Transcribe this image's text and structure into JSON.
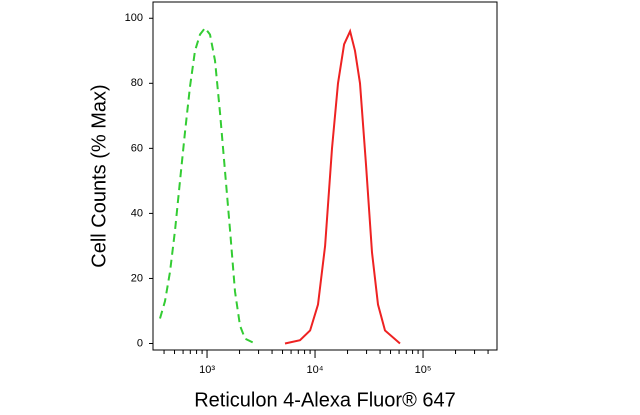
{
  "chart_data": {
    "type": "line",
    "xlabel": "Reticulon 4-Alexa Fluor® 647",
    "ylabel": "Cell Counts (% Max)",
    "xscale": "log",
    "xlim": [
      316,
      484000
    ],
    "ylim": [
      -2,
      105
    ],
    "xticks": [
      {
        "value": 1000,
        "label": "10³"
      },
      {
        "value": 10000,
        "label": "10⁴"
      },
      {
        "value": 100000,
        "label": "10⁵"
      }
    ],
    "yticks": [
      0,
      20,
      40,
      60,
      80,
      100
    ],
    "grid": false,
    "series": [
      {
        "color": "#33cc33",
        "linestyle": "dashed",
        "x": [
          367,
          408,
          454,
          506,
          562,
          625,
          696,
          774,
          861,
          958,
          1066,
          1186,
          1319,
          1468,
          1633,
          1816,
          2021,
          2248,
          2782
        ],
        "values": [
          7.7,
          13,
          22,
          35,
          50,
          65,
          79,
          90,
          95,
          97,
          95,
          87,
          71,
          53,
          35,
          16,
          5.5,
          1.5,
          0
        ]
      },
      {
        "color": "#ee2222",
        "linestyle": "solid",
        "x": [
          5272,
          7262,
          8995,
          10660,
          12390,
          14370,
          16330,
          18570,
          21100,
          23450,
          26100,
          29650,
          33700,
          38300,
          44450,
          61200
        ],
        "values": [
          0,
          1,
          4,
          12,
          30,
          60,
          80,
          92,
          96,
          90,
          80,
          55,
          28,
          12,
          4,
          0
        ]
      }
    ]
  }
}
